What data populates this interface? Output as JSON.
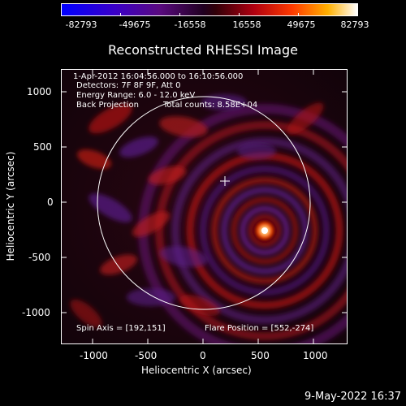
{
  "colorbar": {
    "labels": [
      "-82793",
      "-49675",
      "-16558",
      "16558",
      "49675",
      "82793"
    ]
  },
  "plot": {
    "title": "Reconstructed RHESSI Image",
    "info_lines": [
      "1-Apr-2012 16:04:56.000 to 16:10:56.000",
      "Detectors: 7F 8F 9F, Att 0",
      "Energy Range: 6.0 - 12.0 keV",
      "Back Projection",
      "Total counts: 8.58E+04"
    ],
    "spin_axis": "Spin Axis = [192,151]",
    "flare_position": "Flare Position = [552,-274]",
    "xlabel": "Heliocentric X (arcsec)",
    "ylabel": "Heliocentric Y (arcsec)",
    "x_ticks": [
      "-1000",
      "-500",
      "0",
      "500",
      "1000"
    ],
    "y_ticks": [
      "1000",
      "500",
      "0",
      "-500",
      "-1000"
    ]
  },
  "footer": {
    "date": "9-May-2022 16:37"
  }
}
